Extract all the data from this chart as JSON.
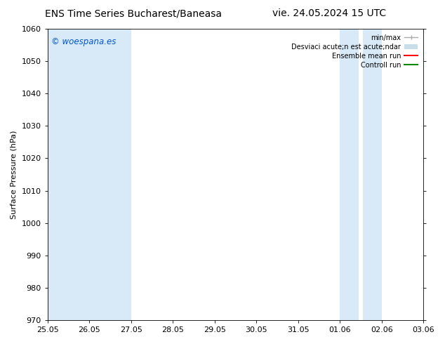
{
  "title_left": "ENS Time Series Bucharest/Baneasa",
  "title_right": "vie. 24.05.2024 15 UTC",
  "ylabel": "Surface Pressure (hPa)",
  "ylim": [
    970,
    1060
  ],
  "yticks": [
    970,
    980,
    990,
    1000,
    1010,
    1020,
    1030,
    1040,
    1050,
    1060
  ],
  "xtick_labels": [
    "25.05",
    "26.05",
    "27.05",
    "28.05",
    "29.05",
    "30.05",
    "31.05",
    "01.06",
    "02.06",
    "03.06"
  ],
  "bg_color": "#ffffff",
  "plot_bg_color": "#ffffff",
  "shade_color": "#d8eaf8",
  "watermark_text": "© woespana.es",
  "watermark_color": "#0055cc",
  "legend_label_minmax": "min/max",
  "legend_label_std": "Desviaci acute;n est acute;ndar",
  "legend_label_ensemble": "Ensemble mean run",
  "legend_label_control": "Controll run",
  "legend_color_minmax": "#aaaaaa",
  "legend_color_std": "#c8dcea",
  "legend_color_ensemble": "#ff0000",
  "legend_color_control": "#008800",
  "title_fontsize": 10,
  "tick_fontsize": 8,
  "ylabel_fontsize": 8,
  "legend_fontsize": 7
}
